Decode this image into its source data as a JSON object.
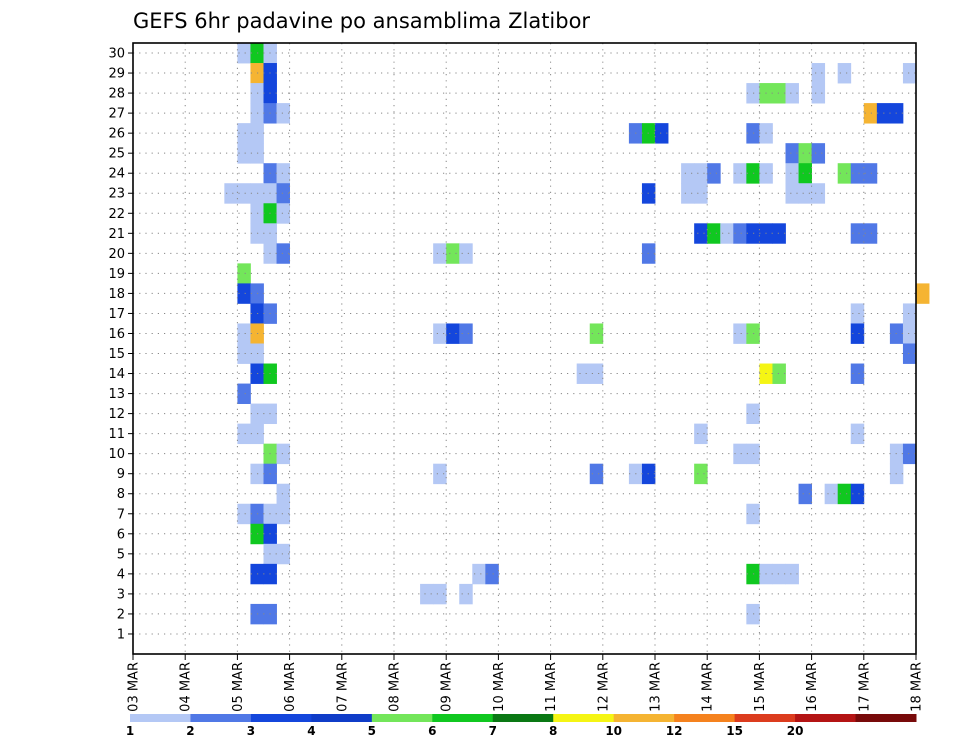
{
  "chart_data": {
    "type": "heatmap",
    "title": "GEFS 6hr padavine po ansamblima Zlatibor",
    "x_tick_labels": [
      "03 MAR",
      "04 MAR",
      "05 MAR",
      "06 MAR",
      "07 MAR",
      "08 MAR",
      "09 MAR",
      "10 MAR",
      "11 MAR",
      "12 MAR",
      "13 MAR",
      "14 MAR",
      "15 MAR",
      "16 MAR",
      "17 MAR",
      "18 MAR"
    ],
    "y_tick_labels": [
      "1",
      "2",
      "3",
      "4",
      "5",
      "6",
      "7",
      "8",
      "9",
      "10",
      "11",
      "12",
      "13",
      "14",
      "15",
      "16",
      "17",
      "18",
      "19",
      "20",
      "21",
      "22",
      "23",
      "24",
      "25",
      "26",
      "27",
      "28",
      "29",
      "30"
    ],
    "x_range": [
      "03 MAR 00Z",
      "18 MAR 00Z"
    ],
    "y_range": [
      0,
      30.5
    ],
    "grid": true,
    "colorbar": {
      "labels": [
        "1",
        "2",
        "3",
        "4",
        "5",
        "6",
        "7",
        "8",
        "10",
        "12",
        "15",
        "20"
      ],
      "colors": [
        "#b4c8f5",
        "#5078e6",
        "#1446dc",
        "#0f3cc8",
        "#73e65a",
        "#10c820",
        "#0a7814",
        "#f5f514",
        "#f5b432",
        "#f5821e",
        "#dc3c1e",
        "#b41414",
        "#780a0a"
      ]
    },
    "cells": [
      {
        "m": 30,
        "t": "05 MAR 00Z",
        "v": 1
      },
      {
        "m": 30,
        "t": "05 MAR 06Z",
        "v": 6
      },
      {
        "m": 30,
        "t": "05 MAR 12Z",
        "v": 1
      },
      {
        "m": 29,
        "t": "05 MAR 06Z",
        "v": 10
      },
      {
        "m": 29,
        "t": "05 MAR 12Z",
        "v": 3
      },
      {
        "m": 29,
        "t": "16 MAR 00Z",
        "v": 1
      },
      {
        "m": 29,
        "t": "16 MAR 12Z",
        "v": 1
      },
      {
        "m": 29,
        "t": "17 MAR 18Z",
        "v": 1
      },
      {
        "m": 28,
        "t": "05 MAR 06Z",
        "v": 1
      },
      {
        "m": 28,
        "t": "05 MAR 12Z",
        "v": 3
      },
      {
        "m": 28,
        "t": "14 MAR 18Z",
        "v": 1
      },
      {
        "m": 28,
        "t": "15 MAR 00Z",
        "v": 5
      },
      {
        "m": 28,
        "t": "15 MAR 06Z",
        "v": 5
      },
      {
        "m": 28,
        "t": "15 MAR 12Z",
        "v": 1
      },
      {
        "m": 28,
        "t": "16 MAR 00Z",
        "v": 1
      },
      {
        "m": 27,
        "t": "05 MAR 06Z",
        "v": 1
      },
      {
        "m": 27,
        "t": "05 MAR 12Z",
        "v": 2
      },
      {
        "m": 27,
        "t": "05 MAR 18Z",
        "v": 1
      },
      {
        "m": 27,
        "t": "17 MAR 00Z",
        "v": 10
      },
      {
        "m": 27,
        "t": "17 MAR 06Z",
        "v": 3
      },
      {
        "m": 27,
        "t": "17 MAR 12Z",
        "v": 3
      },
      {
        "m": 26,
        "t": "05 MAR 00Z",
        "v": 1
      },
      {
        "m": 26,
        "t": "05 MAR 06Z",
        "v": 1
      },
      {
        "m": 26,
        "t": "12 MAR 12Z",
        "v": 2
      },
      {
        "m": 26,
        "t": "12 MAR 18Z",
        "v": 6
      },
      {
        "m": 26,
        "t": "13 MAR 00Z",
        "v": 3
      },
      {
        "m": 26,
        "t": "14 MAR 18Z",
        "v": 2
      },
      {
        "m": 26,
        "t": "15 MAR 00Z",
        "v": 1
      },
      {
        "m": 25,
        "t": "05 MAR 00Z",
        "v": 1
      },
      {
        "m": 25,
        "t": "05 MAR 06Z",
        "v": 1
      },
      {
        "m": 25,
        "t": "15 MAR 12Z",
        "v": 2
      },
      {
        "m": 25,
        "t": "15 MAR 18Z",
        "v": 5
      },
      {
        "m": 25,
        "t": "16 MAR 00Z",
        "v": 2
      },
      {
        "m": 24,
        "t": "05 MAR 12Z",
        "v": 2
      },
      {
        "m": 24,
        "t": "05 MAR 18Z",
        "v": 1
      },
      {
        "m": 24,
        "t": "13 MAR 12Z",
        "v": 1
      },
      {
        "m": 24,
        "t": "13 MAR 18Z",
        "v": 1
      },
      {
        "m": 24,
        "t": "14 MAR 00Z",
        "v": 2
      },
      {
        "m": 24,
        "t": "14 MAR 12Z",
        "v": 1
      },
      {
        "m": 24,
        "t": "14 MAR 18Z",
        "v": 6
      },
      {
        "m": 24,
        "t": "15 MAR 00Z",
        "v": 1
      },
      {
        "m": 24,
        "t": "15 MAR 12Z",
        "v": 1
      },
      {
        "m": 24,
        "t": "15 MAR 18Z",
        "v": 6
      },
      {
        "m": 24,
        "t": "16 MAR 12Z",
        "v": 5
      },
      {
        "m": 24,
        "t": "16 MAR 18Z",
        "v": 2
      },
      {
        "m": 24,
        "t": "17 MAR 00Z",
        "v": 2
      },
      {
        "m": 23,
        "t": "04 MAR 18Z",
        "v": 1
      },
      {
        "m": 23,
        "t": "05 MAR 00Z",
        "v": 1
      },
      {
        "m": 23,
        "t": "05 MAR 06Z",
        "v": 1
      },
      {
        "m": 23,
        "t": "05 MAR 12Z",
        "v": 1
      },
      {
        "m": 23,
        "t": "05 MAR 18Z",
        "v": 2
      },
      {
        "m": 23,
        "t": "12 MAR 18Z",
        "v": 3
      },
      {
        "m": 23,
        "t": "13 MAR 12Z",
        "v": 1
      },
      {
        "m": 23,
        "t": "13 MAR 18Z",
        "v": 1
      },
      {
        "m": 23,
        "t": "15 MAR 12Z",
        "v": 1
      },
      {
        "m": 23,
        "t": "15 MAR 18Z",
        "v": 1
      },
      {
        "m": 23,
        "t": "16 MAR 00Z",
        "v": 1
      },
      {
        "m": 22,
        "t": "05 MAR 06Z",
        "v": 1
      },
      {
        "m": 22,
        "t": "05 MAR 12Z",
        "v": 6
      },
      {
        "m": 22,
        "t": "05 MAR 18Z",
        "v": 1
      },
      {
        "m": 21,
        "t": "05 MAR 06Z",
        "v": 1
      },
      {
        "m": 21,
        "t": "05 MAR 12Z",
        "v": 1
      },
      {
        "m": 21,
        "t": "13 MAR 18Z",
        "v": 3
      },
      {
        "m": 21,
        "t": "14 MAR 00Z",
        "v": 6
      },
      {
        "m": 21,
        "t": "14 MAR 06Z",
        "v": 1
      },
      {
        "m": 21,
        "t": "14 MAR 12Z",
        "v": 2
      },
      {
        "m": 21,
        "t": "14 MAR 18Z",
        "v": 3
      },
      {
        "m": 21,
        "t": "15 MAR 00Z",
        "v": 3
      },
      {
        "m": 21,
        "t": "15 MAR 06Z",
        "v": 3
      },
      {
        "m": 21,
        "t": "16 MAR 18Z",
        "v": 2
      },
      {
        "m": 21,
        "t": "17 MAR 00Z",
        "v": 2
      },
      {
        "m": 20,
        "t": "05 MAR 12Z",
        "v": 1
      },
      {
        "m": 20,
        "t": "05 MAR 18Z",
        "v": 2
      },
      {
        "m": 20,
        "t": "08 MAR 18Z",
        "v": 1
      },
      {
        "m": 20,
        "t": "09 MAR 00Z",
        "v": 5
      },
      {
        "m": 20,
        "t": "09 MAR 06Z",
        "v": 1
      },
      {
        "m": 20,
        "t": "12 MAR 18Z",
        "v": 2
      },
      {
        "m": 19,
        "t": "05 MAR 00Z",
        "v": 5
      },
      {
        "m": 18,
        "t": "05 MAR 00Z",
        "v": 3
      },
      {
        "m": 18,
        "t": "05 MAR 06Z",
        "v": 2
      },
      {
        "m": 18,
        "t": "18 MAR 00Z",
        "v": 10
      },
      {
        "m": 17,
        "t": "05 MAR 06Z",
        "v": 3
      },
      {
        "m": 17,
        "t": "05 MAR 12Z",
        "v": 2
      },
      {
        "m": 17,
        "t": "16 MAR 18Z",
        "v": 1
      },
      {
        "m": 17,
        "t": "17 MAR 18Z",
        "v": 1
      },
      {
        "m": 16,
        "t": "05 MAR 00Z",
        "v": 1
      },
      {
        "m": 16,
        "t": "05 MAR 06Z",
        "v": 10
      },
      {
        "m": 16,
        "t": "08 MAR 18Z",
        "v": 1
      },
      {
        "m": 16,
        "t": "09 MAR 00Z",
        "v": 3
      },
      {
        "m": 16,
        "t": "09 MAR 06Z",
        "v": 2
      },
      {
        "m": 16,
        "t": "11 MAR 18Z",
        "v": 5
      },
      {
        "m": 16,
        "t": "14 MAR 12Z",
        "v": 1
      },
      {
        "m": 16,
        "t": "14 MAR 18Z",
        "v": 5
      },
      {
        "m": 16,
        "t": "16 MAR 18Z",
        "v": 3
      },
      {
        "m": 16,
        "t": "17 MAR 12Z",
        "v": 2
      },
      {
        "m": 16,
        "t": "17 MAR 18Z",
        "v": 1
      },
      {
        "m": 15,
        "t": "05 MAR 00Z",
        "v": 1
      },
      {
        "m": 15,
        "t": "05 MAR 06Z",
        "v": 1
      },
      {
        "m": 15,
        "t": "17 MAR 18Z",
        "v": 2
      },
      {
        "m": 14,
        "t": "05 MAR 06Z",
        "v": 3
      },
      {
        "m": 14,
        "t": "05 MAR 12Z",
        "v": 6
      },
      {
        "m": 14,
        "t": "11 MAR 12Z",
        "v": 1
      },
      {
        "m": 14,
        "t": "11 MAR 18Z",
        "v": 1
      },
      {
        "m": 14,
        "t": "15 MAR 00Z",
        "v": 8
      },
      {
        "m": 14,
        "t": "15 MAR 06Z",
        "v": 5
      },
      {
        "m": 14,
        "t": "16 MAR 18Z",
        "v": 2
      },
      {
        "m": 13,
        "t": "05 MAR 00Z",
        "v": 2
      },
      {
        "m": 12,
        "t": "05 MAR 06Z",
        "v": 1
      },
      {
        "m": 12,
        "t": "05 MAR 12Z",
        "v": 1
      },
      {
        "m": 12,
        "t": "14 MAR 18Z",
        "v": 1
      },
      {
        "m": 11,
        "t": "05 MAR 00Z",
        "v": 1
      },
      {
        "m": 11,
        "t": "05 MAR 06Z",
        "v": 1
      },
      {
        "m": 11,
        "t": "13 MAR 18Z",
        "v": 1
      },
      {
        "m": 11,
        "t": "16 MAR 18Z",
        "v": 1
      },
      {
        "m": 10,
        "t": "05 MAR 12Z",
        "v": 5
      },
      {
        "m": 10,
        "t": "05 MAR 18Z",
        "v": 1
      },
      {
        "m": 10,
        "t": "14 MAR 12Z",
        "v": 1
      },
      {
        "m": 10,
        "t": "14 MAR 18Z",
        "v": 1
      },
      {
        "m": 10,
        "t": "17 MAR 12Z",
        "v": 1
      },
      {
        "m": 10,
        "t": "17 MAR 18Z",
        "v": 2
      },
      {
        "m": 9,
        "t": "05 MAR 06Z",
        "v": 1
      },
      {
        "m": 9,
        "t": "05 MAR 12Z",
        "v": 2
      },
      {
        "m": 9,
        "t": "08 MAR 18Z",
        "v": 1
      },
      {
        "m": 9,
        "t": "11 MAR 18Z",
        "v": 2
      },
      {
        "m": 9,
        "t": "12 MAR 12Z",
        "v": 1
      },
      {
        "m": 9,
        "t": "12 MAR 18Z",
        "v": 3
      },
      {
        "m": 9,
        "t": "13 MAR 18Z",
        "v": 5
      },
      {
        "m": 9,
        "t": "17 MAR 12Z",
        "v": 1
      },
      {
        "m": 8,
        "t": "05 MAR 18Z",
        "v": 1
      },
      {
        "m": 8,
        "t": "15 MAR 18Z",
        "v": 2
      },
      {
        "m": 8,
        "t": "16 MAR 06Z",
        "v": 1
      },
      {
        "m": 8,
        "t": "16 MAR 12Z",
        "v": 6
      },
      {
        "m": 8,
        "t": "16 MAR 18Z",
        "v": 3
      },
      {
        "m": 7,
        "t": "05 MAR 00Z",
        "v": 1
      },
      {
        "m": 7,
        "t": "05 MAR 06Z",
        "v": 2
      },
      {
        "m": 7,
        "t": "05 MAR 12Z",
        "v": 1
      },
      {
        "m": 7,
        "t": "05 MAR 18Z",
        "v": 1
      },
      {
        "m": 7,
        "t": "14 MAR 18Z",
        "v": 1
      },
      {
        "m": 6,
        "t": "05 MAR 06Z",
        "v": 6
      },
      {
        "m": 6,
        "t": "05 MAR 12Z",
        "v": 3
      },
      {
        "m": 5,
        "t": "05 MAR 12Z",
        "v": 1
      },
      {
        "m": 5,
        "t": "05 MAR 18Z",
        "v": 1
      },
      {
        "m": 4,
        "t": "05 MAR 06Z",
        "v": 3
      },
      {
        "m": 4,
        "t": "05 MAR 12Z",
        "v": 3
      },
      {
        "m": 4,
        "t": "09 MAR 12Z",
        "v": 1
      },
      {
        "m": 4,
        "t": "09 MAR 18Z",
        "v": 2
      },
      {
        "m": 4,
        "t": "14 MAR 18Z",
        "v": 6
      },
      {
        "m": 4,
        "t": "15 MAR 00Z",
        "v": 1
      },
      {
        "m": 4,
        "t": "15 MAR 06Z",
        "v": 1
      },
      {
        "m": 4,
        "t": "15 MAR 12Z",
        "v": 1
      },
      {
        "m": 3,
        "t": "08 MAR 12Z",
        "v": 1
      },
      {
        "m": 3,
        "t": "08 MAR 18Z",
        "v": 1
      },
      {
        "m": 3,
        "t": "09 MAR 06Z",
        "v": 1
      },
      {
        "m": 2,
        "t": "05 MAR 06Z",
        "v": 2
      },
      {
        "m": 2,
        "t": "05 MAR 12Z",
        "v": 2
      },
      {
        "m": 2,
        "t": "14 MAR 18Z",
        "v": 1
      }
    ]
  }
}
